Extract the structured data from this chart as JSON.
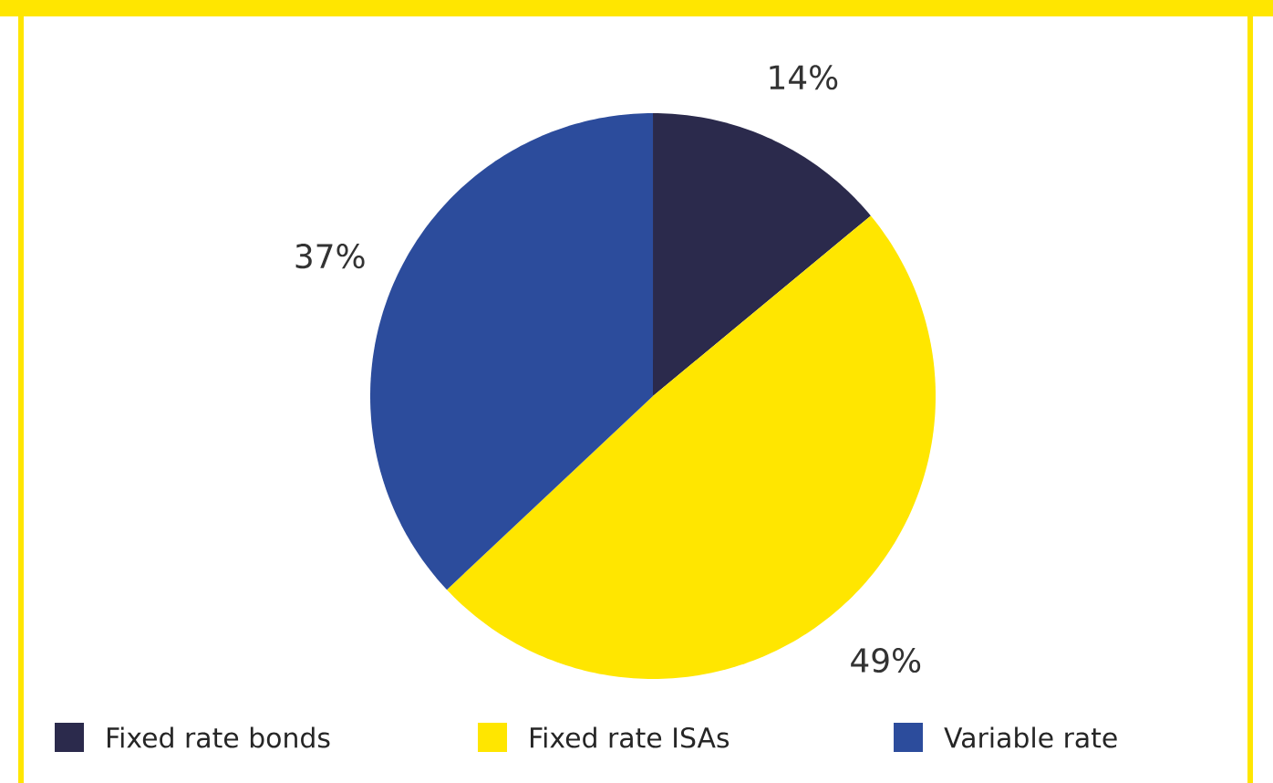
{
  "chart_data": {
    "type": "pie",
    "categories": [
      "Fixed rate bonds",
      "Fixed rate ISAs",
      "Variable rate"
    ],
    "values": [
      14,
      49,
      37
    ],
    "colors": [
      "#2b2a4c",
      "#ffe600",
      "#2c4c9c"
    ],
    "value_labels": [
      "14%",
      "49%",
      "37%"
    ],
    "legend": "bottom"
  }
}
